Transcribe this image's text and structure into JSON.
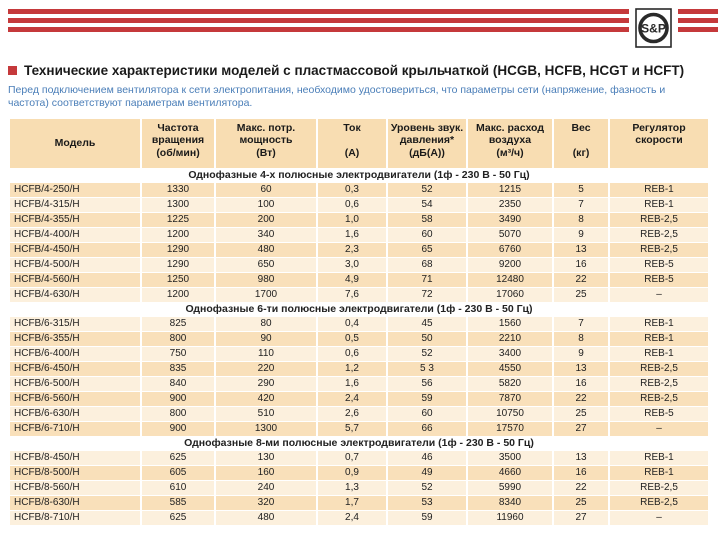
{
  "logo": {
    "text": "S&P"
  },
  "title": {
    "text": "Технические характеристики моделей с пластмассовой крыльчаткой (HCGB, HCFB, HCGT и HCFT)"
  },
  "intro": "Перед подключением вентилятора к сети электропитания, необходимо удостовериться, что параметры сети (напряжение, фазность и частота) соответствуют параметрам вентилятора.",
  "colors": {
    "stripe_red": "#c5393b",
    "header_bg": "#f8ddb2",
    "row_peach": "#f9e0ba",
    "row_light": "#fcf0dd",
    "intro_blue": "#4a7eb8"
  },
  "table": {
    "columns": [
      {
        "name": "model",
        "lines": [
          "Модель"
        ]
      },
      {
        "name": "speed",
        "lines": [
          "Частота",
          "вращения",
          "(об/мин)"
        ]
      },
      {
        "name": "power",
        "lines": [
          "Макс. потр.",
          "мощность",
          "(Вт)"
        ]
      },
      {
        "name": "current",
        "lines": [
          "Ток",
          "",
          "(А)"
        ]
      },
      {
        "name": "sound",
        "lines": [
          "Уровень звук.",
          "давления*",
          "(дБ(А))"
        ]
      },
      {
        "name": "airflow",
        "lines": [
          "Макс. расход",
          "воздуха",
          "(м³/ч)"
        ]
      },
      {
        "name": "weight",
        "lines": [
          "Вес",
          "",
          "(кг)"
        ]
      },
      {
        "name": "regulator",
        "lines": [
          "Регулятор",
          "скорости"
        ]
      }
    ],
    "sections": [
      {
        "header": "Однофазные 4-х полюсные электродвигатели (1ф - 230 В - 50 Гц)",
        "first_shade": "peach",
        "rows": [
          {
            "model": "HCFB/4-250/H",
            "cells": [
              "1330",
              "60",
              "0,3",
              "52",
              "1215",
              "5",
              "REB-1"
            ]
          },
          {
            "model": "HCFB/4-315/H",
            "cells": [
              "1300",
              "100",
              "0,6",
              "54",
              "2350",
              "7",
              "REB-1"
            ]
          },
          {
            "model": "HCFB/4-355/H",
            "cells": [
              "1225",
              "200",
              "1,0",
              "58",
              "3490",
              "8",
              "REB-2,5"
            ]
          },
          {
            "model": "HCFB/4-400/H",
            "cells": [
              "1200",
              "340",
              "1,6",
              "60",
              "5070",
              "9",
              "REB-2,5"
            ]
          },
          {
            "model": "HCFB/4-450/H",
            "cells": [
              "1290",
              "480",
              "2,3",
              "65",
              "6760",
              "13",
              "REB-2,5"
            ]
          },
          {
            "model": "HCFB/4-500/H",
            "cells": [
              "1290",
              "650",
              "3,0",
              "68",
              "9200",
              "16",
              "REB-5"
            ]
          },
          {
            "model": "HCFB/4-560/H",
            "cells": [
              "1250",
              "980",
              "4,9",
              "71",
              "12480",
              "22",
              "REB-5"
            ]
          },
          {
            "model": "HCFB/4-630/H",
            "cells": [
              "1200",
              "1700",
              "7,6",
              "72",
              "17060",
              "25",
              "–"
            ]
          }
        ]
      },
      {
        "header": "Однофазные 6-ти полюсные электродвигатели (1ф - 230 В - 50 Гц)",
        "first_shade": "light",
        "rows": [
          {
            "model": "HCFB/6-315/H",
            "cells": [
              "825",
              "80",
              "0,4",
              "45",
              "1560",
              "7",
              "REB-1"
            ]
          },
          {
            "model": "HCFB/6-355/H",
            "cells": [
              "800",
              "90",
              "0,5",
              "50",
              "2210",
              "8",
              "REB-1"
            ]
          },
          {
            "model": "HCFB/6-400/H",
            "cells": [
              "750",
              "110",
              "0,6",
              "52",
              "3400",
              "9",
              "REB-1"
            ]
          },
          {
            "model": "HCFB/6-450/H",
            "cells": [
              "835",
              "220",
              "1,2",
              "5 3",
              "4550",
              "13",
              "REB-2,5"
            ]
          },
          {
            "model": "HCFB/6-500/H",
            "cells": [
              "840",
              "290",
              "1,6",
              "56",
              "5820",
              "16",
              "REB-2,5"
            ]
          },
          {
            "model": "HCFB/6-560/H",
            "cells": [
              "900",
              "420",
              "2,4",
              "59",
              "7870",
              "22",
              "REB-2,5"
            ]
          },
          {
            "model": "HCFB/6-630/H",
            "cells": [
              "800",
              "510",
              "2,6",
              "60",
              "10750",
              "25",
              "REB-5"
            ]
          },
          {
            "model": "HCFB/6-710/H",
            "cells": [
              "900",
              "1300",
              "5,7",
              "66",
              "17570",
              "27",
              "–"
            ]
          }
        ]
      },
      {
        "header": "Однофазные 8-ми полюсные электродвигатели (1ф - 230 В - 50 Гц)",
        "first_shade": "light",
        "rows": [
          {
            "model": "HCFB/8-450/H",
            "cells": [
              "625",
              "130",
              "0,7",
              "46",
              "3500",
              "13",
              "REB-1"
            ]
          },
          {
            "model": "HCFB/8-500/H",
            "cells": [
              "605",
              "160",
              "0,9",
              "49",
              "4660",
              "16",
              "REB-1"
            ]
          },
          {
            "model": "HCFB/8-560/H",
            "cells": [
              "610",
              "240",
              "1,3",
              "52",
              "5990",
              "22",
              "REB-2,5"
            ]
          },
          {
            "model": "HCFB/8-630/H",
            "cells": [
              "585",
              "320",
              "1,7",
              "53",
              "8340",
              "25",
              "REB-2,5"
            ]
          },
          {
            "model": "HCFB/8-710/H",
            "cells": [
              "625",
              "480",
              "2,4",
              "59",
              "11960",
              "27",
              "–"
            ]
          }
        ]
      }
    ]
  }
}
